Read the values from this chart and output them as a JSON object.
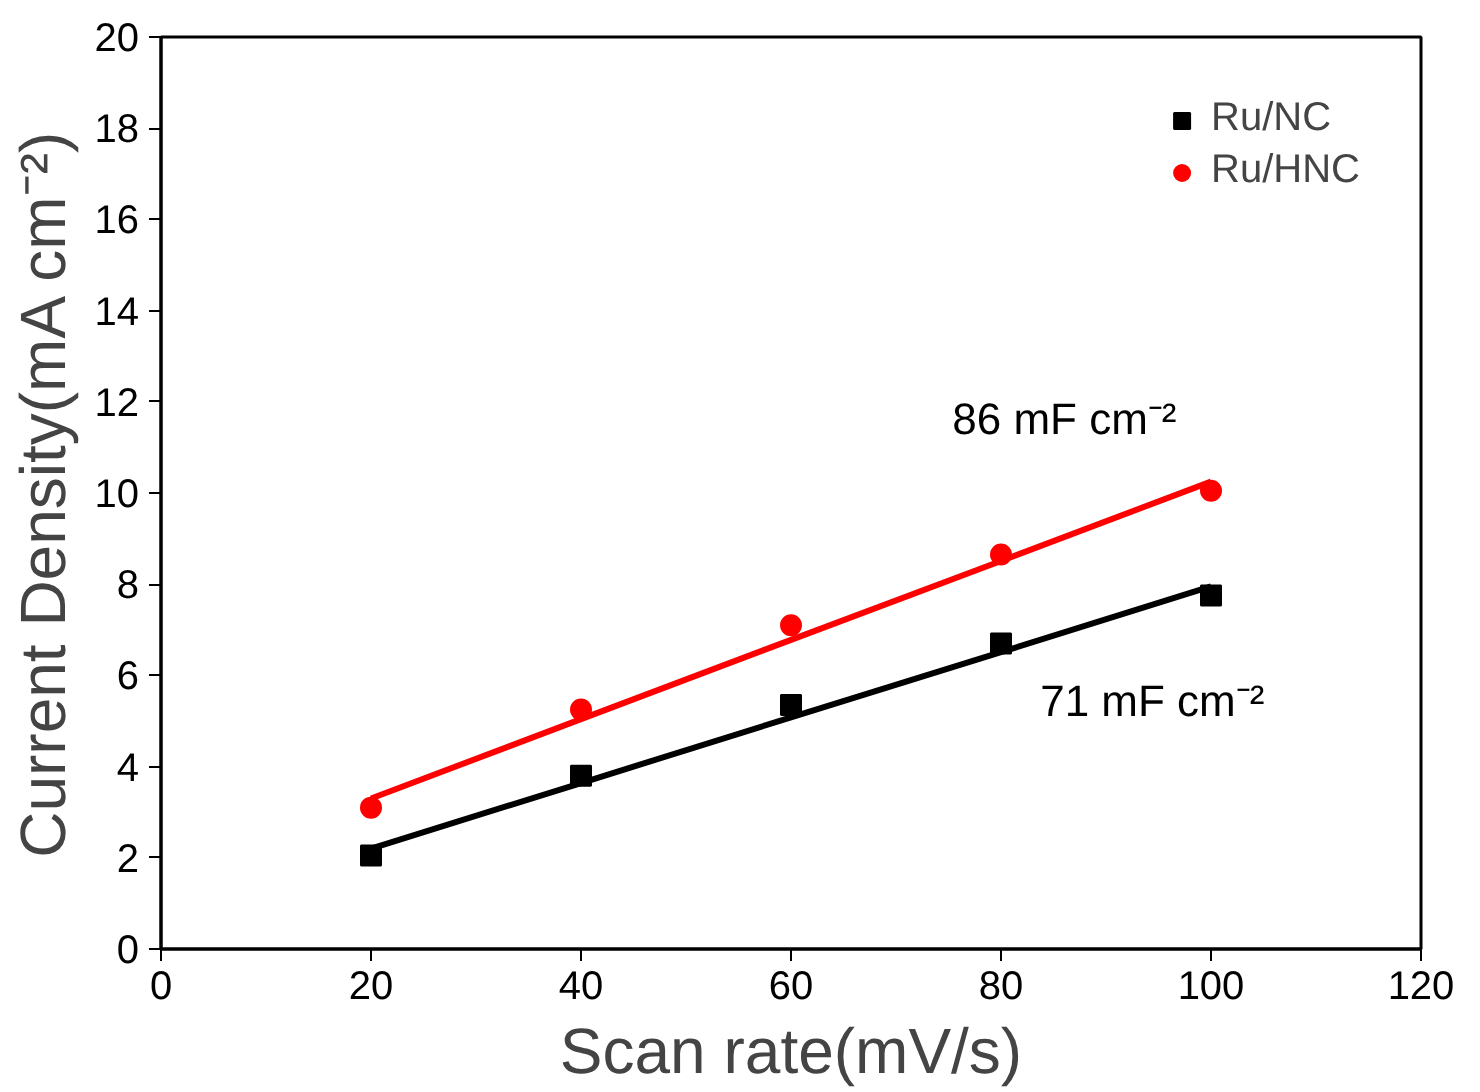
{
  "chart_data": {
    "type": "scatter",
    "xlabel": "Scan rate(mV/s)",
    "ylabel": "Current Density(mA cm⁻²)",
    "xlim": [
      0,
      120
    ],
    "xticks": [
      0,
      20,
      40,
      60,
      80,
      100,
      120
    ],
    "ylim": [
      0,
      20
    ],
    "yticks": [
      0,
      2,
      4,
      6,
      8,
      10,
      12,
      14,
      16,
      18,
      20
    ],
    "grid": false,
    "legend": "top right",
    "x": [
      20,
      40,
      60,
      80,
      100
    ],
    "series": [
      {
        "name": "Ru/NC",
        "color": "#000000",
        "marker": "square",
        "values": [
          2.05,
          3.8,
          5.35,
          6.7,
          7.75
        ]
      },
      {
        "name": "Ru/HNC",
        "color": "#ff0000",
        "marker": "circle",
        "values": [
          3.1,
          5.25,
          7.1,
          8.65,
          10.05
        ]
      },
      {
        "type": "line",
        "color": "#000000",
        "values": [
          2.2,
          3.64,
          5.08,
          6.51,
          7.95
        ]
      },
      {
        "type": "line",
        "color": "#ff0000",
        "values": [
          3.3,
          5.04,
          6.78,
          8.51,
          10.25
        ]
      }
    ],
    "annotations": [
      "86 mF cm⁻²",
      "71 mF cm⁻²"
    ]
  }
}
